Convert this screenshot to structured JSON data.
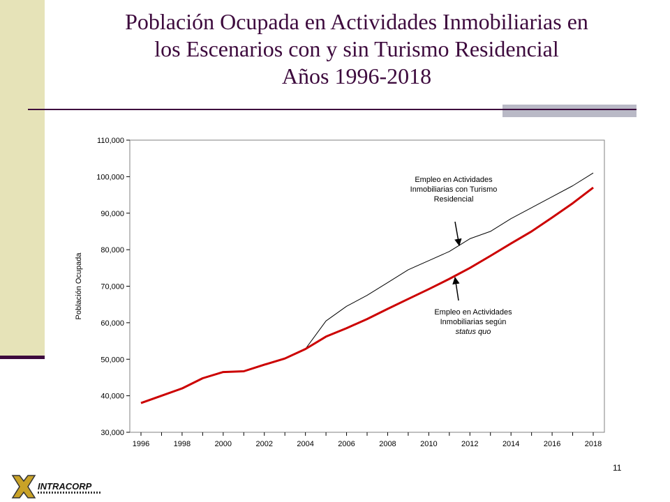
{
  "slide": {
    "title_lines": [
      "Población Ocupada en Actividades Inmobiliarias en",
      "los Escenarios con y sin Turismo Residencial",
      "Años 1996-2018"
    ],
    "page_number": "11",
    "logo_text": "INTRACORP"
  },
  "colors": {
    "accent_bar": "#e6e3b8",
    "title": "#3d0a3d",
    "status_quo_series": "#cc0000",
    "tourism_series": "#000000"
  },
  "chart_data": {
    "type": "line",
    "ylabel": "Población Ocupada",
    "xlabel": "",
    "ylim": [
      30000,
      110000
    ],
    "xlim": [
      1996,
      2018
    ],
    "y_ticks": [
      30000,
      40000,
      50000,
      60000,
      70000,
      80000,
      90000,
      100000,
      110000
    ],
    "y_tick_labels": [
      "30,000",
      "40,000",
      "50,000",
      "60,000",
      "70,000",
      "80,000",
      "90,000",
      "100,000",
      "110,000"
    ],
    "x_ticks": [
      1996,
      1998,
      2000,
      2002,
      2004,
      2006,
      2008,
      2010,
      2012,
      2014,
      2016,
      2018
    ],
    "x_tick_labels": [
      "1996",
      "1998",
      "2000",
      "2002",
      "2004",
      "2006",
      "2008",
      "2010",
      "2012",
      "2014",
      "2016",
      "2018"
    ],
    "grid": false,
    "series": [
      {
        "key": "status_quo",
        "x": [
          1996,
          1997,
          1998,
          1999,
          2000,
          2001,
          2002,
          2003,
          2004,
          2005,
          2006,
          2007,
          2008,
          2009,
          2010,
          2011,
          2012,
          2013,
          2014,
          2015,
          2016,
          2017,
          2018
        ],
        "values": [
          38000,
          40000,
          42000,
          44800,
          46500,
          46700,
          48500,
          50200,
          52800,
          56200,
          58500,
          61000,
          63800,
          66500,
          69200,
          72000,
          75000,
          78300,
          81700,
          85000,
          88800,
          92700,
          97000
        ]
      },
      {
        "key": "tourism",
        "x": [
          2004,
          2005,
          2006,
          2007,
          2008,
          2009,
          2010,
          2011,
          2012,
          2013,
          2014,
          2015,
          2016,
          2017,
          2018
        ],
        "values": [
          52800,
          60500,
          64500,
          67500,
          71000,
          74500,
          77000,
          79500,
          83000,
          85000,
          88500,
          91500,
          94500,
          97500,
          101000
        ]
      }
    ],
    "annotations": [
      {
        "key": "tourism_label",
        "lines": [
          "Empleo en Actividades",
          "Inmobiliarias con Turismo",
          "Residencial"
        ],
        "italic_last": false
      },
      {
        "key": "status_quo_label",
        "lines": [
          "Empleo en Actividades",
          "Inmobiliarias según",
          "status quo"
        ],
        "italic_last": true
      }
    ]
  }
}
